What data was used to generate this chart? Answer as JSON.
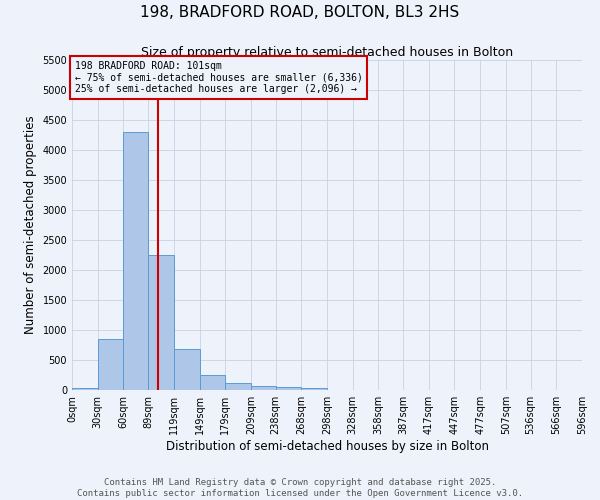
{
  "title": "198, BRADFORD ROAD, BOLTON, BL3 2HS",
  "subtitle": "Size of property relative to semi-detached houses in Bolton",
  "xlabel": "Distribution of semi-detached houses by size in Bolton",
  "ylabel": "Number of semi-detached properties",
  "footer_line1": "Contains HM Land Registry data © Crown copyright and database right 2025.",
  "footer_line2": "Contains public sector information licensed under the Open Government Licence v3.0.",
  "bin_labels": [
    "0sqm",
    "30sqm",
    "60sqm",
    "89sqm",
    "119sqm",
    "149sqm",
    "179sqm",
    "209sqm",
    "238sqm",
    "268sqm",
    "298sqm",
    "328sqm",
    "358sqm",
    "387sqm",
    "417sqm",
    "447sqm",
    "477sqm",
    "507sqm",
    "536sqm",
    "566sqm",
    "596sqm"
  ],
  "bin_edges": [
    0,
    30,
    60,
    89,
    119,
    149,
    179,
    209,
    238,
    268,
    298,
    328,
    358,
    387,
    417,
    447,
    477,
    507,
    536,
    566,
    596
  ],
  "bar_heights": [
    30,
    850,
    4300,
    2250,
    680,
    250,
    120,
    65,
    55,
    30,
    0,
    0,
    0,
    0,
    0,
    0,
    0,
    0,
    0,
    0
  ],
  "bar_color": "#aec6e8",
  "bar_edge_color": "#5b9bd5",
  "property_size": 101,
  "red_line_color": "#cc0000",
  "annotation_text_line1": "198 BRADFORD ROAD: 101sqm",
  "annotation_text_line2": "← 75% of semi-detached houses are smaller (6,336)",
  "annotation_text_line3": "25% of semi-detached houses are larger (2,096) →",
  "annotation_box_color": "#cc0000",
  "ylim": [
    0,
    5500
  ],
  "yticks": [
    0,
    500,
    1000,
    1500,
    2000,
    2500,
    3000,
    3500,
    4000,
    4500,
    5000,
    5500
  ],
  "background_color": "#eef2fa",
  "grid_color": "#c0cce0",
  "title_fontsize": 11,
  "subtitle_fontsize": 9,
  "label_fontsize": 8.5,
  "tick_fontsize": 7,
  "footer_fontsize": 6.5,
  "annotation_fontsize": 7
}
